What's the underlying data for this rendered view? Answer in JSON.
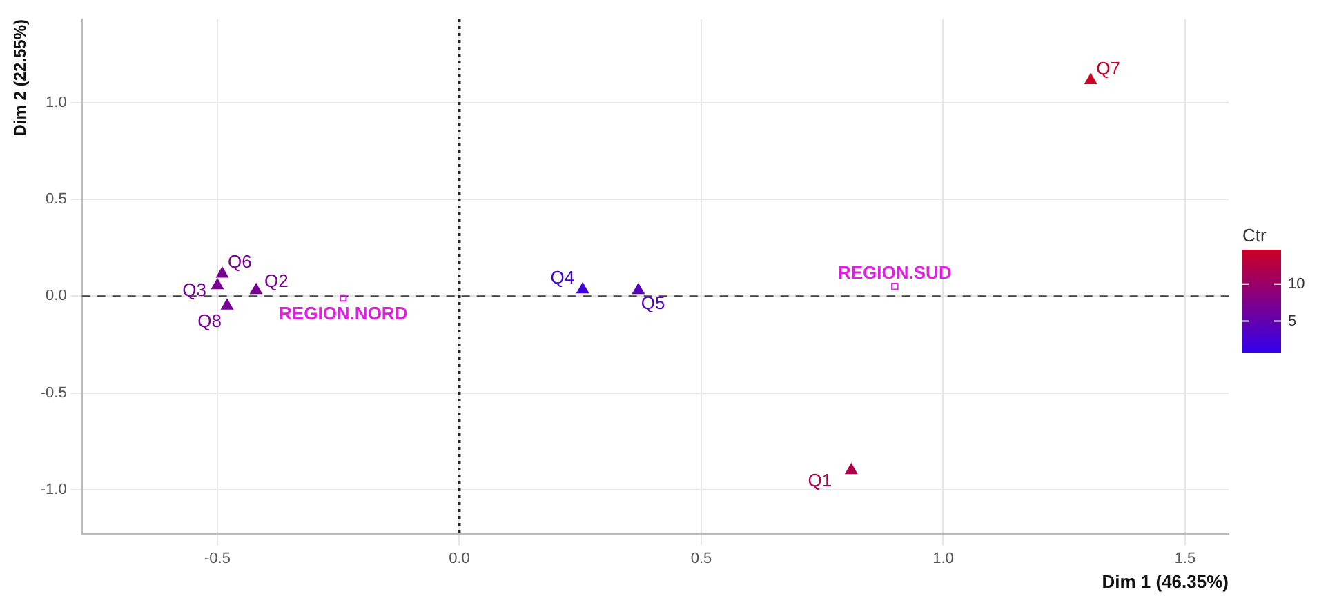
{
  "chart_data": {
    "type": "scatter",
    "xlabel": "Dim 1 (46.35%)",
    "ylabel": "Dim 2 (22.55%)",
    "clabel": "Ctr",
    "xlim": [
      -0.78,
      1.59
    ],
    "ylim": [
      -1.23,
      1.43
    ],
    "xticks": [
      {
        "value": -0.5,
        "label": "-0.5"
      },
      {
        "value": 0,
        "label": "0.0"
      },
      {
        "value": 0.5,
        "label": "0.5"
      },
      {
        "value": 1,
        "label": "1.0"
      },
      {
        "value": 1.5,
        "label": "1.5"
      }
    ],
    "yticks": [
      {
        "value": -1,
        "label": "-1.0"
      },
      {
        "value": -0.5,
        "label": "-0.5"
      },
      {
        "value": 0,
        "label": "0.0"
      },
      {
        "value": 0.5,
        "label": "0.5"
      },
      {
        "value": 1,
        "label": "1.0"
      }
    ],
    "clim": [
      0.7,
      14.6
    ],
    "cticks": [
      5,
      10
    ],
    "grid": true,
    "series": [
      {
        "marker": "triangle",
        "x": [
          0.81,
          -0.42,
          -0.5,
          0.255,
          0.37,
          -0.49,
          1.305,
          -0.48
        ],
        "values": [
          -0.9,
          0.03,
          0.055,
          0.034,
          0.03,
          0.115,
          1.115,
          -0.05
        ],
        "colors": [
          "#af0048",
          "#780092",
          "#780092",
          "#4100db",
          "#5700be",
          "#780092",
          "#cc0022",
          "#780092"
        ]
      },
      {
        "marker": "square",
        "color": "#e020e0",
        "x": [
          -0.24,
          0.9
        ],
        "values": [
          -0.01,
          0.05
        ]
      }
    ],
    "annotations": [
      {
        "text": "Q1",
        "x": 0.81,
        "y": -0.9
      },
      {
        "text": "Q2",
        "x": -0.42,
        "y": 0.03
      },
      {
        "text": "Q3",
        "x": -0.5,
        "y": 0.055
      },
      {
        "text": "Q4",
        "x": 0.255,
        "y": 0.034
      },
      {
        "text": "Q5",
        "x": 0.37,
        "y": 0.03
      },
      {
        "text": "Q6",
        "x": -0.49,
        "y": 0.115
      },
      {
        "text": "Q7",
        "x": 1.305,
        "y": 1.115
      },
      {
        "text": "Q8",
        "x": -0.48,
        "y": -0.05
      },
      {
        "text": "REGION.NORD",
        "x": -0.24,
        "y": -0.01
      },
      {
        "text": "REGION.SUD",
        "x": 0.9,
        "y": 0.05
      }
    ],
    "ref_lines": [
      {
        "axis": "x",
        "value": 0,
        "line_style": "dotted",
        "color": "#222222"
      },
      {
        "axis": "y",
        "value": 0,
        "line_style": "dashed",
        "color": "#444444"
      }
    ]
  }
}
